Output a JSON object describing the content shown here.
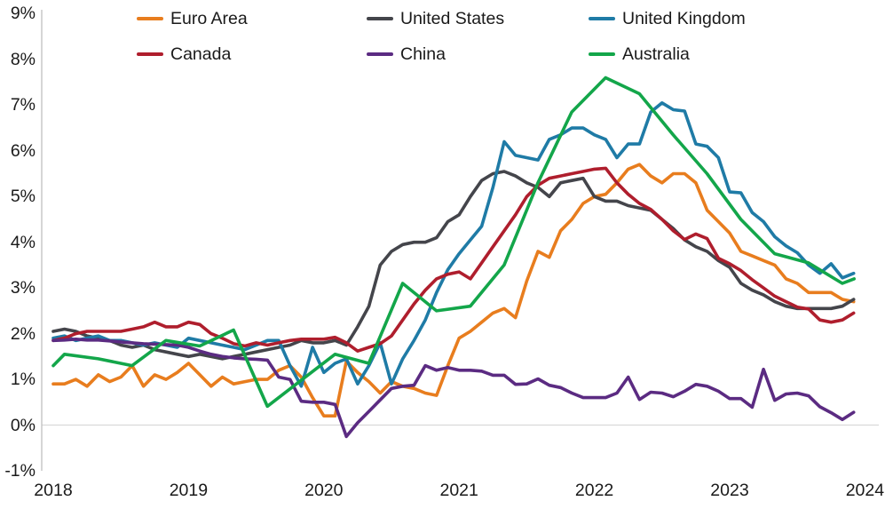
{
  "chart_data": {
    "type": "line",
    "x_axis": {
      "tick_labels": [
        "2018",
        "2019",
        "2020",
        "2021",
        "2022",
        "2023",
        "2024"
      ],
      "tick_values": [
        2018,
        2019,
        2020,
        2021,
        2022,
        2023,
        2024
      ],
      "range": [
        2018,
        2024.2
      ]
    },
    "y_axis": {
      "tick_labels": [
        "9%",
        "8%",
        "7%",
        "6%",
        "5%",
        "4%",
        "3%",
        "2%",
        "1%",
        "0%",
        "-1%"
      ],
      "tick_values": [
        9,
        8,
        7,
        6,
        5,
        4,
        3,
        2,
        1,
        0,
        -1
      ],
      "range": [
        -1,
        9
      ],
      "gridline_at": 0,
      "grid": false
    },
    "legend": {
      "position": "top",
      "rows": [
        [
          "Euro Area",
          "United States",
          "United Kingdom"
        ],
        [
          "Canada",
          "China",
          "Australia"
        ]
      ]
    },
    "axis_color": "#bfbfbf",
    "gridline_color": "#d9d9d9",
    "series": [
      {
        "name": "Euro Area",
        "color": "#E87D1E",
        "frequency": "monthly",
        "start": "2018-01",
        "values": [
          0.9,
          0.9,
          1.0,
          0.85,
          1.1,
          0.95,
          1.05,
          1.3,
          0.85,
          1.1,
          1.0,
          1.15,
          1.35,
          1.1,
          0.85,
          1.05,
          0.9,
          0.95,
          1.0,
          1.0,
          1.2,
          1.3,
          1.05,
          0.6,
          0.2,
          0.2,
          1.4,
          1.15,
          0.95,
          0.7,
          0.95,
          0.85,
          0.8,
          0.7,
          0.65,
          1.3,
          1.9,
          2.05,
          2.25,
          2.45,
          2.55,
          2.35,
          3.15,
          3.8,
          3.67,
          4.25,
          4.5,
          4.85,
          5.0,
          5.05,
          5.3,
          5.6,
          5.7,
          5.45,
          5.3,
          5.5,
          5.5,
          5.3,
          4.7,
          4.45,
          4.2,
          3.8,
          3.7,
          3.6,
          3.5,
          3.2,
          3.1,
          2.9,
          2.9,
          2.9,
          2.75,
          2.7
        ]
      },
      {
        "name": "United States",
        "color": "#44454B",
        "frequency": "monthly",
        "start": "2018-01",
        "values": [
          2.05,
          2.1,
          2.05,
          1.95,
          1.9,
          1.85,
          1.75,
          1.7,
          1.75,
          1.65,
          1.6,
          1.55,
          1.5,
          1.55,
          1.5,
          1.45,
          1.5,
          1.55,
          1.6,
          1.65,
          1.7,
          1.75,
          1.85,
          1.8,
          1.8,
          1.85,
          1.75,
          2.15,
          2.6,
          3.5,
          3.8,
          3.95,
          4.0,
          4.0,
          4.1,
          4.45,
          4.6,
          5.0,
          5.35,
          5.5,
          5.55,
          5.45,
          5.3,
          5.2,
          5.0,
          5.3,
          5.35,
          5.4,
          5.0,
          4.9,
          4.9,
          4.8,
          4.75,
          4.7,
          4.5,
          4.3,
          4.05,
          3.9,
          3.8,
          3.6,
          3.45,
          3.1,
          2.95,
          2.85,
          2.7,
          2.6,
          2.55,
          2.55,
          2.55,
          2.55,
          2.6,
          2.75
        ]
      },
      {
        "name": "United Kingdom",
        "color": "#1F7BA6",
        "frequency": "monthly",
        "start": "2018-01",
        "values": [
          1.9,
          1.95,
          1.85,
          1.9,
          1.95,
          1.85,
          1.85,
          1.8,
          1.75,
          1.8,
          1.75,
          1.7,
          1.9,
          1.85,
          1.8,
          1.75,
          1.7,
          1.65,
          1.75,
          1.85,
          1.85,
          1.3,
          0.85,
          1.7,
          1.15,
          1.35,
          1.45,
          0.9,
          1.3,
          1.8,
          0.9,
          1.45,
          1.85,
          2.3,
          2.9,
          3.4,
          3.75,
          4.05,
          4.35,
          5.2,
          6.2,
          5.9,
          5.85,
          5.8,
          6.25,
          6.35,
          6.5,
          6.5,
          6.35,
          6.25,
          5.85,
          6.15,
          6.15,
          6.85,
          7.05,
          6.9,
          6.87,
          6.15,
          6.1,
          5.85,
          5.1,
          5.08,
          4.65,
          4.45,
          4.12,
          3.92,
          3.77,
          3.5,
          3.32,
          3.53,
          3.22,
          3.32
        ]
      },
      {
        "name": "Canada",
        "color": "#AF1E2D",
        "frequency": "monthly",
        "start": "2018-01",
        "values": [
          1.85,
          1.9,
          2.0,
          2.05,
          2.05,
          2.05,
          2.05,
          2.1,
          2.15,
          2.25,
          2.15,
          2.15,
          2.25,
          2.2,
          2.0,
          1.9,
          1.78,
          1.73,
          1.8,
          1.75,
          1.8,
          1.85,
          1.88,
          1.88,
          1.88,
          1.92,
          1.8,
          1.62,
          1.7,
          1.78,
          1.95,
          2.3,
          2.65,
          2.95,
          3.2,
          3.3,
          3.35,
          3.2,
          3.55,
          3.9,
          4.25,
          4.6,
          5.0,
          5.25,
          5.4,
          5.45,
          5.5,
          5.55,
          5.6,
          5.62,
          5.3,
          5.05,
          4.85,
          4.72,
          4.5,
          4.25,
          4.06,
          4.18,
          4.08,
          3.65,
          3.53,
          3.38,
          3.18,
          3.0,
          2.82,
          2.7,
          2.58,
          2.54,
          2.3,
          2.25,
          2.3,
          2.45
        ]
      },
      {
        "name": "China",
        "color": "#5B2B82",
        "frequency": "monthly",
        "start": "2018-01",
        "values": [
          1.85,
          1.86,
          1.88,
          1.86,
          1.86,
          1.84,
          1.82,
          1.8,
          1.78,
          1.77,
          1.76,
          1.75,
          1.7,
          1.62,
          1.55,
          1.5,
          1.47,
          1.45,
          1.44,
          1.42,
          1.05,
          1.0,
          0.52,
          0.5,
          0.5,
          0.45,
          -0.25,
          0.05,
          0.3,
          0.55,
          0.8,
          0.85,
          0.87,
          1.3,
          1.2,
          1.26,
          1.2,
          1.2,
          1.18,
          1.09,
          1.09,
          0.89,
          0.9,
          1.01,
          0.87,
          0.82,
          0.7,
          0.6,
          0.6,
          0.6,
          0.7,
          1.05,
          0.56,
          0.72,
          0.7,
          0.62,
          0.74,
          0.89,
          0.85,
          0.74,
          0.58,
          0.58,
          0.39,
          1.22,
          0.54,
          0.68,
          0.7,
          0.64,
          0.4,
          0.27,
          0.12,
          0.28
        ]
      },
      {
        "name": "Australia",
        "color": "#13A64A",
        "frequency": "quarterly",
        "x": [
          2018.0,
          2018.083,
          2018.333,
          2018.583,
          2018.833,
          2019.083,
          2019.333,
          2019.583,
          2019.833,
          2020.083,
          2020.333,
          2020.583,
          2020.833,
          2021.083,
          2021.333,
          2021.583,
          2021.833,
          2022.083,
          2022.333,
          2022.583,
          2022.833,
          2023.083,
          2023.333,
          2023.583,
          2023.833,
          2023.92
        ],
        "values": [
          1.3,
          1.55,
          1.45,
          1.3,
          1.85,
          1.73,
          2.08,
          0.41,
          0.98,
          1.55,
          1.35,
          3.1,
          2.5,
          2.6,
          3.5,
          5.3,
          6.85,
          7.6,
          7.25,
          6.35,
          5.5,
          4.5,
          3.75,
          3.55,
          3.1,
          3.2
        ]
      }
    ]
  }
}
